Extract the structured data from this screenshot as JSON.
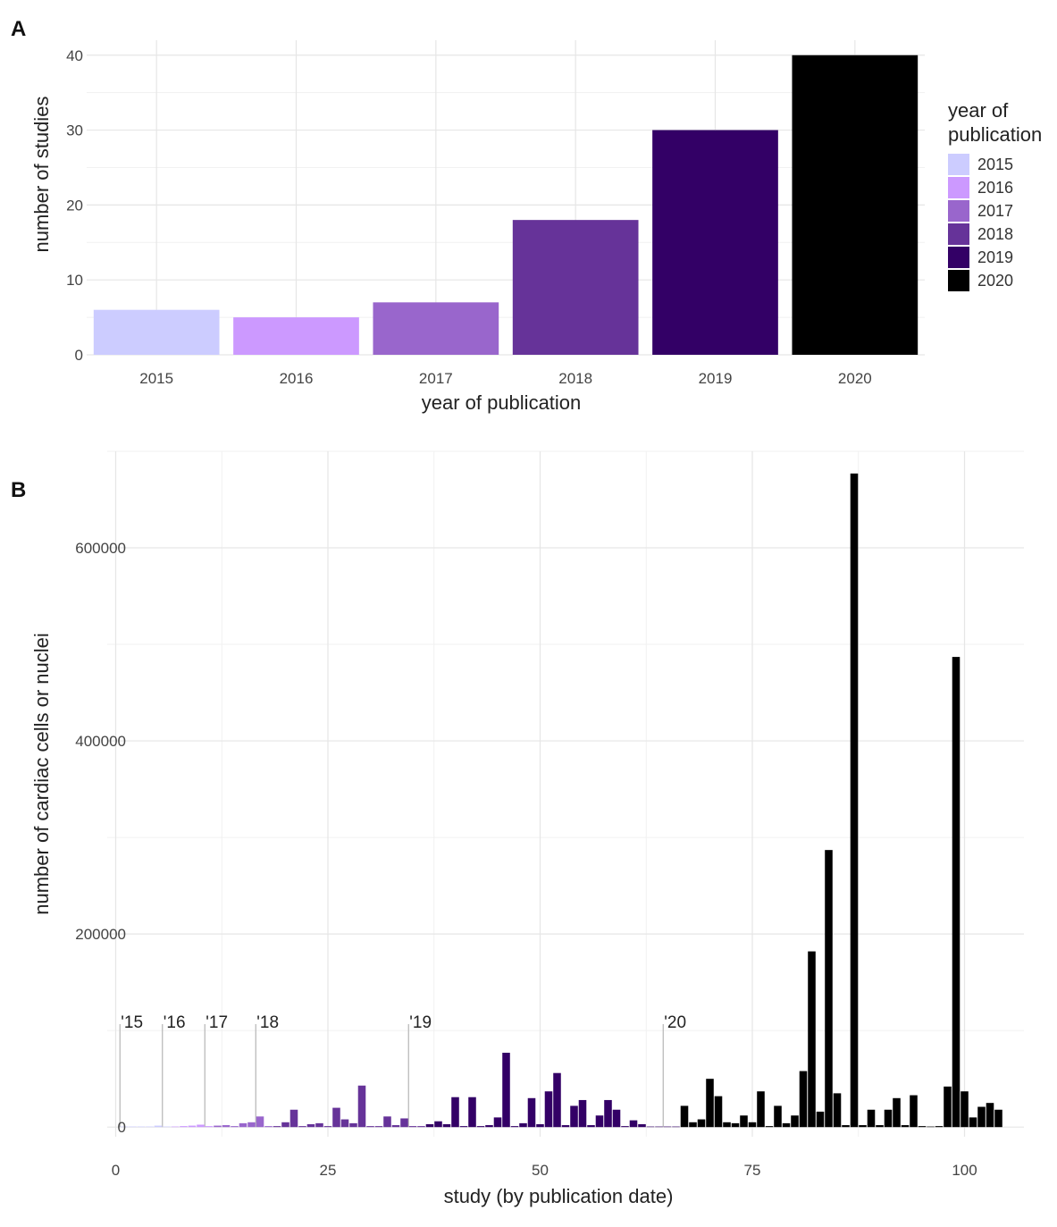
{
  "panels": {
    "a": "A",
    "b": "B"
  },
  "colors": {
    "2015": "#ccccff",
    "2016": "#cc99ff",
    "2017": "#9966cc",
    "2018": "#663399",
    "2019": "#330066",
    "2020": "#000000"
  },
  "chart_data": [
    {
      "type": "bar",
      "panel": "A",
      "categories": [
        "2015",
        "2016",
        "2017",
        "2018",
        "2019",
        "2020"
      ],
      "values": [
        6,
        5,
        7,
        18,
        30,
        40
      ],
      "title": "",
      "xlabel": "year of publication",
      "ylabel": "number of studies",
      "ylim": [
        0,
        42
      ],
      "yticks": [
        0,
        10,
        20,
        30,
        40
      ],
      "grid": true,
      "legend": {
        "title_lines": [
          "year of",
          "publication"
        ],
        "placement": "right",
        "entries": [
          "2015",
          "2016",
          "2017",
          "2018",
          "2019",
          "2020"
        ]
      }
    },
    {
      "type": "bar",
      "panel": "B",
      "title": "",
      "xlabel": "study (by publication date)",
      "ylabel": "number of cardiac cells or nuclei",
      "xlim": [
        -1,
        107
      ],
      "ylim": [
        -10000,
        700000
      ],
      "xticks": [
        0,
        25,
        50,
        75,
        100
      ],
      "yticks": [
        0,
        200000,
        400000,
        600000
      ],
      "grid": true,
      "year_markers": [
        {
          "label": "'15",
          "x": 0.5
        },
        {
          "label": "'16",
          "x": 5.5
        },
        {
          "label": "'17",
          "x": 10.5
        },
        {
          "label": "'18",
          "x": 16.5
        },
        {
          "label": "'19",
          "x": 34.5
        },
        {
          "label": "'20",
          "x": 64.5
        }
      ],
      "series": [
        {
          "year": "2015",
          "x": [
            1,
            2,
            3,
            4,
            5,
            6
          ],
          "values": [
            0,
            0,
            300,
            500,
            1500,
            500
          ]
        },
        {
          "year": "2016",
          "x": [
            7,
            8,
            9,
            10,
            11
          ],
          "values": [
            500,
            1000,
            1500,
            2500,
            1000
          ]
        },
        {
          "year": "2017",
          "x": [
            12,
            13,
            14,
            15,
            16,
            17,
            18
          ],
          "values": [
            1500,
            2000,
            1000,
            4000,
            5000,
            11000,
            1000
          ]
        },
        {
          "year": "2018",
          "x": [
            19,
            20,
            21,
            22,
            23,
            24,
            25,
            26,
            27,
            28,
            29,
            30,
            31,
            32,
            33,
            34,
            35,
            36
          ],
          "values": [
            1000,
            5000,
            18000,
            1000,
            3000,
            4000,
            1000,
            20000,
            8000,
            4000,
            43000,
            1000,
            1000,
            11000,
            2000,
            9000,
            1000,
            1000
          ]
        },
        {
          "year": "2019",
          "x": [
            37,
            38,
            39,
            40,
            41,
            42,
            43,
            44,
            45,
            46,
            47,
            48,
            49,
            50,
            51,
            52,
            53,
            54,
            55,
            56,
            57,
            58,
            59,
            60,
            61,
            62,
            63,
            64,
            65,
            66
          ],
          "values": [
            3000,
            6000,
            3000,
            31000,
            1000,
            31000,
            1000,
            2000,
            10000,
            77000,
            1000,
            4000,
            30000,
            3000,
            37000,
            56000,
            2000,
            22000,
            28000,
            2000,
            12000,
            28000,
            18000,
            1000,
            7000,
            3000,
            500,
            500,
            500,
            500
          ]
        },
        {
          "year": "2020",
          "x": [
            67,
            68,
            69,
            70,
            71,
            72,
            73,
            74,
            75,
            76,
            77,
            78,
            79,
            80,
            81,
            82,
            83,
            84,
            85,
            86,
            87,
            88,
            89,
            90,
            91,
            92,
            93,
            94,
            95,
            96,
            97,
            98,
            99,
            100,
            101,
            102,
            103,
            104
          ],
          "values": [
            22000,
            5000,
            8000,
            50000,
            32000,
            5000,
            4000,
            12000,
            5000,
            37000,
            1000,
            22000,
            4000,
            12000,
            58000,
            182000,
            16000,
            287000,
            35000,
            2000,
            677000,
            2000,
            18000,
            2000,
            18000,
            30000,
            2000,
            33000,
            1000,
            500,
            1000,
            42000,
            487000,
            37000,
            10000,
            21000,
            25000,
            18000
          ]
        }
      ]
    }
  ]
}
